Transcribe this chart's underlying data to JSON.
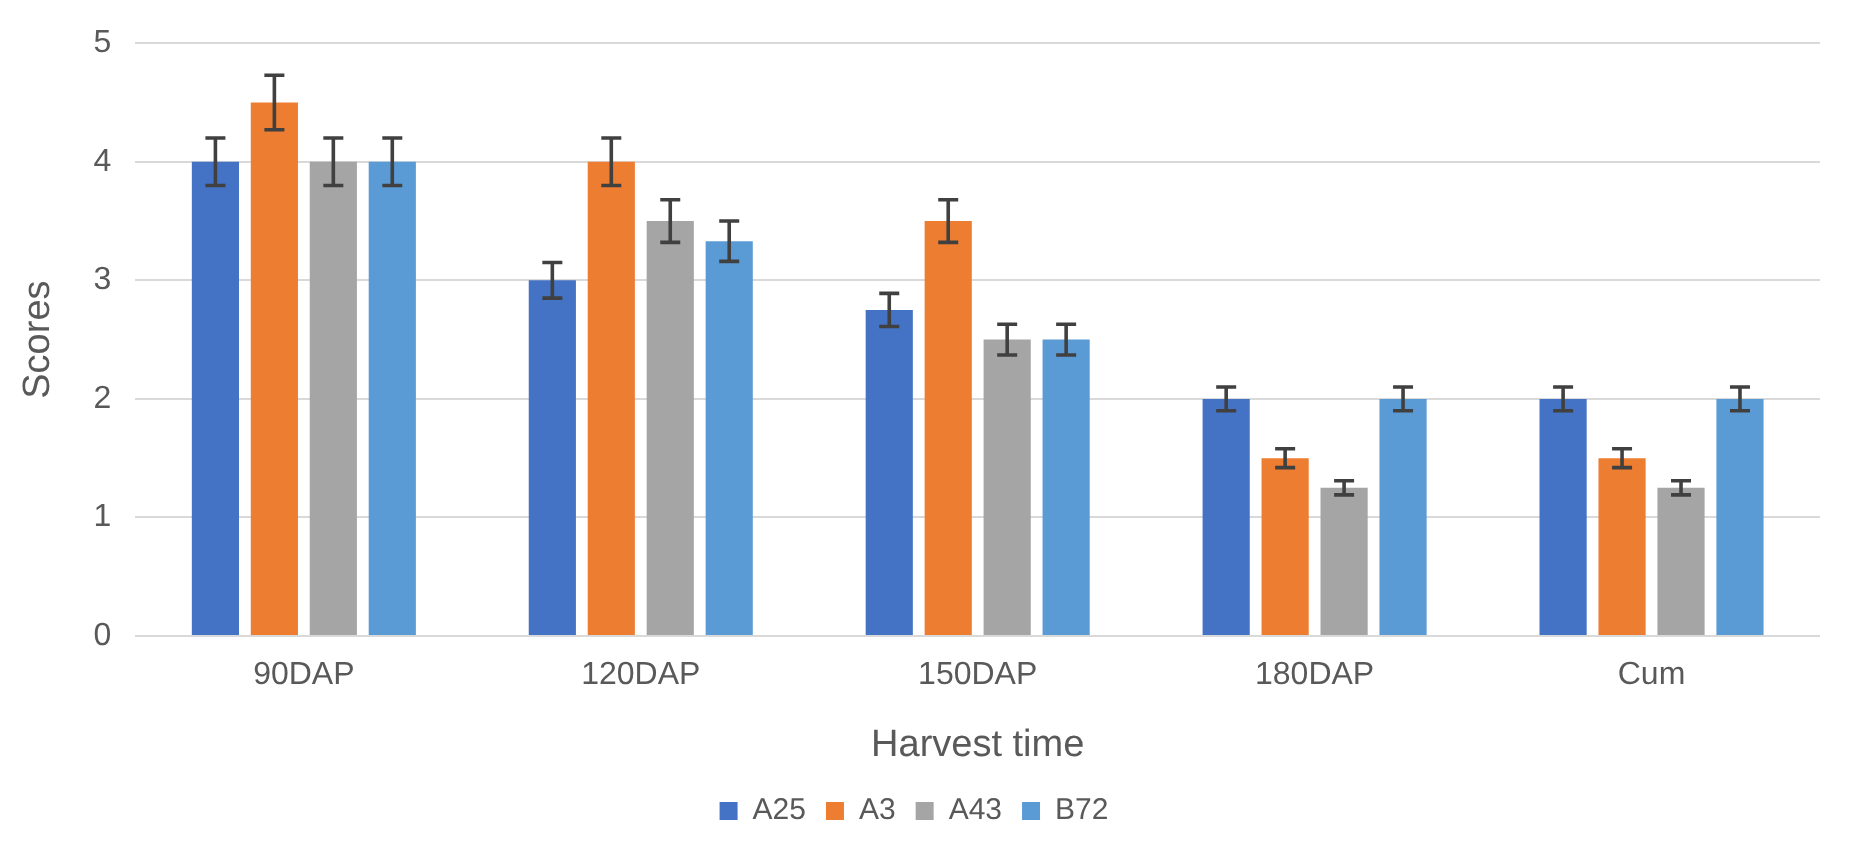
{
  "chart_data": {
    "type": "bar",
    "xlabel": "Harvest time",
    "ylabel": "Scores",
    "categories": [
      "90DAP",
      "120DAP",
      "150DAP",
      "180DAP",
      "Cum"
    ],
    "series": [
      {
        "name": "A25",
        "color": "#4472c4",
        "values": [
          4,
          3,
          2.75,
          2,
          2
        ],
        "errors": [
          0.2,
          0.15,
          0.14,
          0.1,
          0.1
        ]
      },
      {
        "name": "A3",
        "color": "#ed7d31",
        "values": [
          4.5,
          4,
          3.5,
          1.5,
          1.5
        ],
        "errors": [
          0.23,
          0.2,
          0.18,
          0.08,
          0.08
        ]
      },
      {
        "name": "A43",
        "color": "#a5a5a5",
        "values": [
          4,
          3.5,
          2.5,
          1.25,
          1.25
        ],
        "errors": [
          0.2,
          0.18,
          0.13,
          0.06,
          0.06
        ]
      },
      {
        "name": "B72",
        "color": "#5b9bd5",
        "values": [
          4,
          3.33,
          2.5,
          2,
          2
        ],
        "errors": [
          0.2,
          0.17,
          0.13,
          0.1,
          0.1
        ]
      }
    ],
    "ylim": [
      0,
      5
    ],
    "yticks": [
      0,
      1,
      2,
      3,
      4,
      5
    ],
    "grid": "y",
    "legend": "bottom"
  }
}
